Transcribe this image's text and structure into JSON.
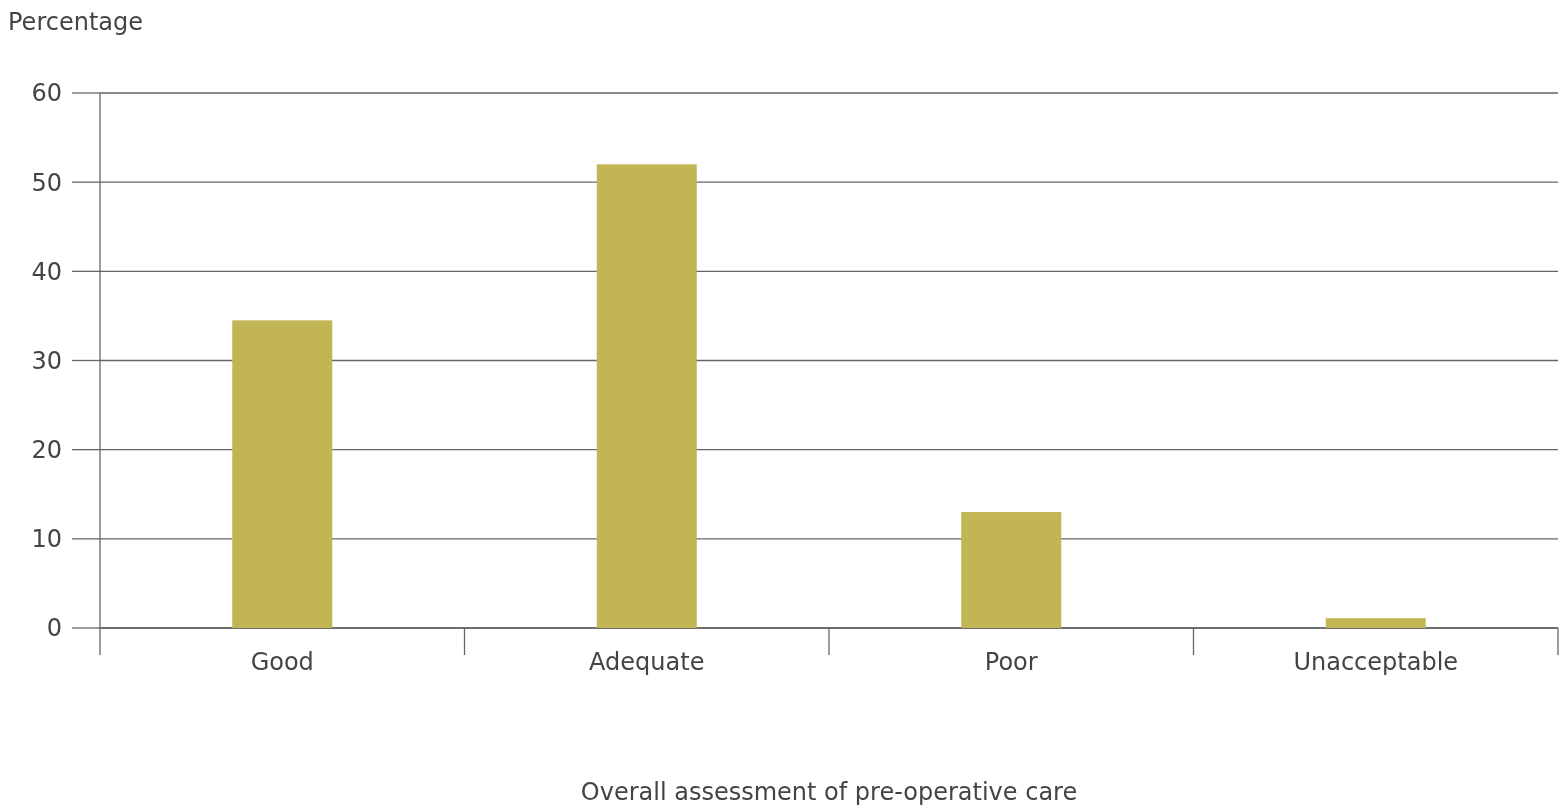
{
  "chart_data": {
    "type": "bar",
    "ylabel": "Percentage",
    "xlabel": "Overall assessment of pre-operative care",
    "categories": [
      "Good",
      "Adequate",
      "Poor",
      "Unacceptable"
    ],
    "values": [
      34.5,
      52,
      13,
      1.1
    ],
    "color": "#c2b553",
    "ylim": [
      0,
      60
    ],
    "yticks": [
      0,
      10,
      20,
      30,
      40,
      50,
      60
    ],
    "grid": "y"
  }
}
